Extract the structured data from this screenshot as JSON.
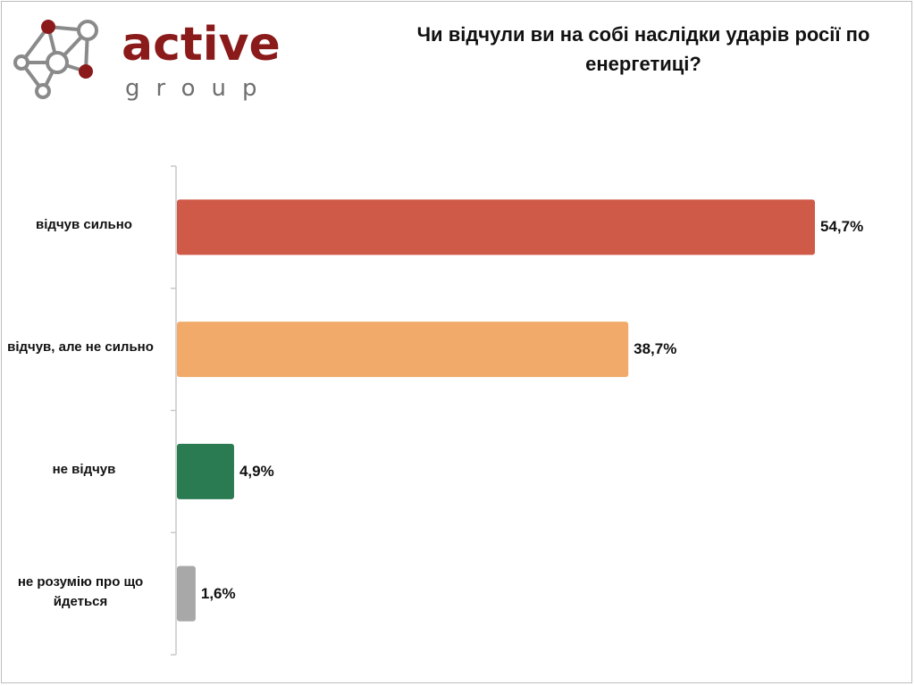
{
  "logo": {
    "word": "active",
    "sub": "group",
    "colors": {
      "red": "#8b1a1a",
      "gray": "#6f6f6f"
    }
  },
  "title": "Чи відчули ви на собі наслідки ударів росії по енергетиці?",
  "chart_data": {
    "type": "bar",
    "orientation": "horizontal",
    "title": "Чи відчули ви на собі наслідки ударів росії по енергетиці?",
    "categories": [
      "відчув сильно",
      "відчув, але не сильно",
      "не відчув",
      "не розумію про що йдеться"
    ],
    "values": [
      54.7,
      38.7,
      4.9,
      1.6
    ],
    "value_labels": [
      "54,7%",
      "38,7%",
      "4,9%",
      "1,6%"
    ],
    "colors": [
      "#d05a48",
      "#f1aa69",
      "#2a7a52",
      "#a8a8a8"
    ],
    "xlim": [
      0,
      60
    ],
    "grid": false,
    "legend": "none"
  }
}
